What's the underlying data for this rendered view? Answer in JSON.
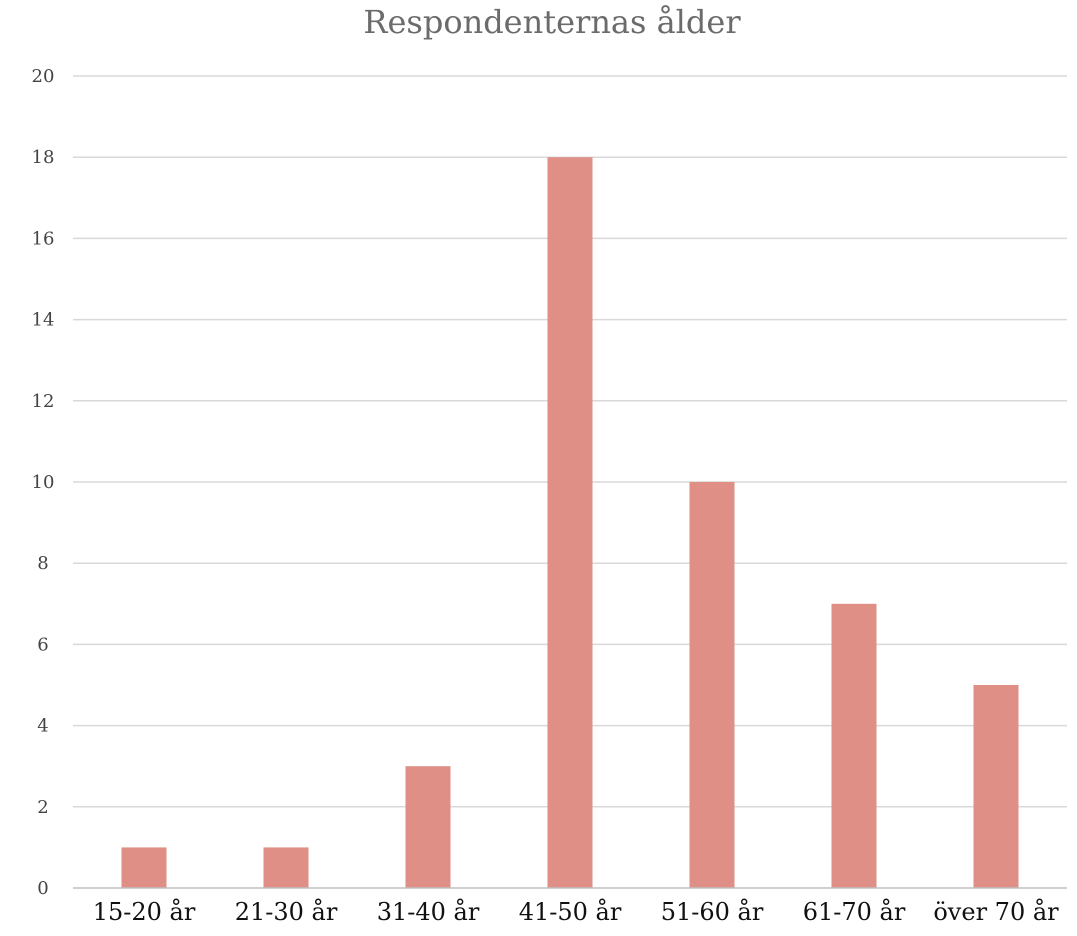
{
  "chart_data": {
    "type": "bar",
    "title": "Respondenternas ålder",
    "xlabel": "",
    "ylabel": "",
    "categories": [
      "15-20 år",
      "21-30 år",
      "31-40 år",
      "41-50 år",
      "51-60 år",
      "61-70 år",
      "över 70 år"
    ],
    "values": [
      1,
      1,
      3,
      18,
      10,
      7,
      5
    ],
    "ylim": [
      0,
      20
    ],
    "yticks": [
      0,
      2,
      4,
      6,
      8,
      10,
      12,
      14,
      16,
      18,
      20
    ],
    "grid": true,
    "legend": "none",
    "bar_color": "#df8f85"
  }
}
